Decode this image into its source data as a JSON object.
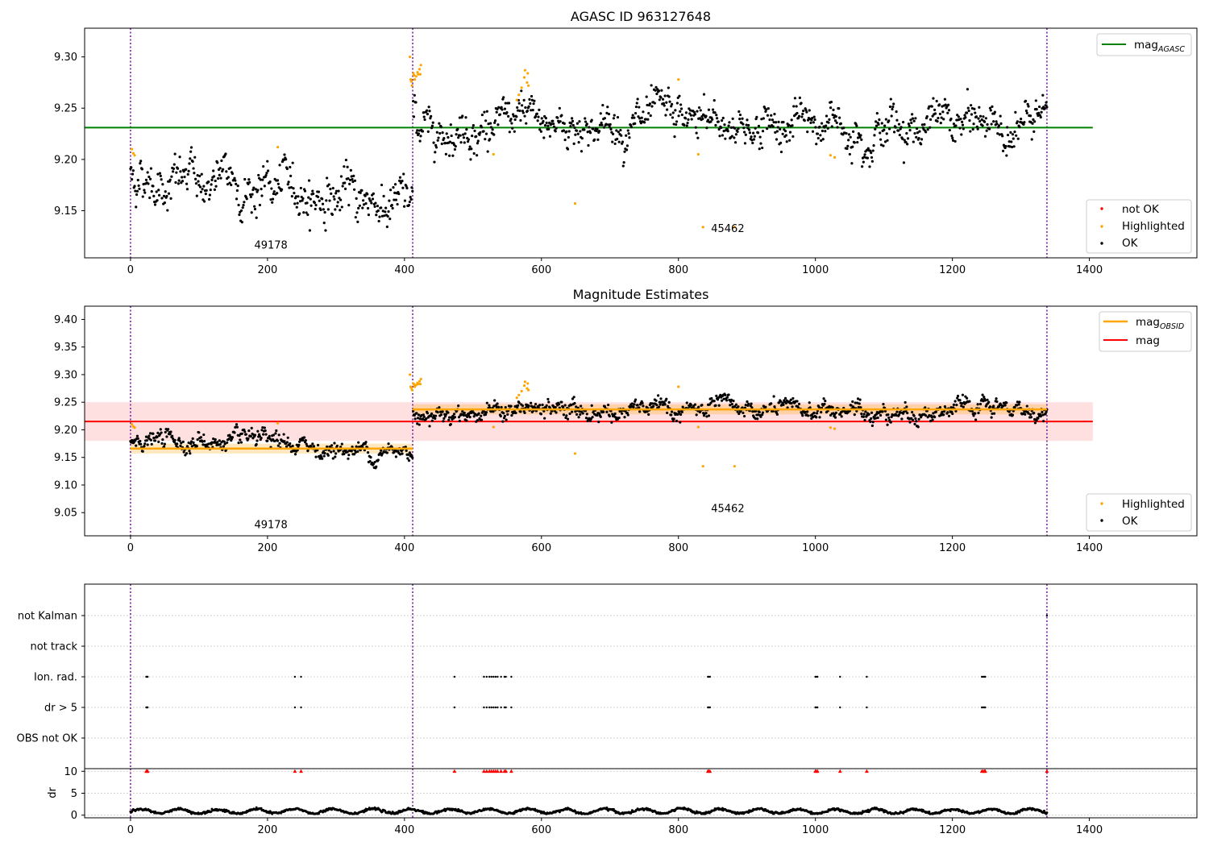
{
  "chart_data": [
    {
      "type": "scatter",
      "title": "AGASC ID 963127648",
      "xlabel": "",
      "ylabel": "",
      "xlim": [
        -67,
        1557
      ],
      "ylim": [
        9.104,
        9.328
      ],
      "xticks": [
        0,
        200,
        400,
        600,
        800,
        1000,
        1200,
        1400
      ],
      "yticks": [
        9.15,
        9.2,
        9.25,
        9.3
      ],
      "xtick_labels": [
        "0",
        "200",
        "400",
        "600",
        "800",
        "1000",
        "1200",
        "1400"
      ],
      "ytick_labels": [
        "9.15",
        "9.20",
        "9.25",
        "9.30"
      ],
      "obs_boundaries": [
        0,
        412,
        1338
      ],
      "obs_labels": [
        {
          "text": "49178",
          "x": 205,
          "y": 9.113
        },
        {
          "text": "45462",
          "x": 872,
          "y": 9.129
        }
      ],
      "lines": [
        {
          "name": "mag_AGASC",
          "color": "#008000",
          "x": [
            -67,
            1405
          ],
          "y": [
            9.231,
            9.231
          ]
        }
      ],
      "series": [
        {
          "name": "not OK",
          "color": "#ff0000",
          "points": []
        },
        {
          "name": "Highlighted",
          "color": "#ffa500",
          "points": [
            [
              2,
              9.21
            ],
            [
              4,
              9.206
            ],
            [
              6,
              9.204
            ],
            [
              215,
              9.212
            ],
            [
              408,
              9.3
            ],
            [
              409,
              9.278
            ],
            [
              410,
              9.276
            ],
            [
              411,
              9.272
            ],
            [
              413,
              9.284
            ],
            [
              414,
              9.282
            ],
            [
              415,
              9.278
            ],
            [
              417,
              9.281
            ],
            [
              419,
              9.285
            ],
            [
              420,
              9.283
            ],
            [
              422,
              9.288
            ],
            [
              423,
              9.283
            ],
            [
              424,
              9.292
            ],
            [
              530,
              9.205
            ],
            [
              564,
              9.258
            ],
            [
              567,
              9.263
            ],
            [
              571,
              9.27
            ],
            [
              575,
              9.28
            ],
            [
              576,
              9.287
            ],
            [
              579,
              9.275
            ],
            [
              580,
              9.284
            ],
            [
              581,
              9.272
            ],
            [
              649,
              9.157
            ],
            [
              800,
              9.278
            ],
            [
              829,
              9.205
            ],
            [
              836,
              9.134
            ],
            [
              882,
              9.134
            ],
            [
              1022,
              9.204
            ],
            [
              1028,
              9.202
            ]
          ]
        },
        {
          "name": "OK",
          "color": "#000000",
          "count": 1340,
          "x_range": [
            0,
            1338
          ],
          "segments": [
            {
              "x_from": 0,
              "x_to": 412,
              "level_start": 9.185,
              "level_end": 9.157,
              "spread": 0.014
            },
            {
              "x_from": 412,
              "x_to": 1338,
              "level": 9.234,
              "spread": 0.012
            }
          ]
        }
      ],
      "legend": {
        "position": "lower-right",
        "entries": [
          "not OK",
          "Highlighted",
          "OK"
        ]
      },
      "legend_lines": {
        "position": "upper-right",
        "entries": [
          "mag_AGASC"
        ]
      },
      "grid": false
    },
    {
      "type": "scatter",
      "title": "Magnitude Estimates",
      "xlabel": "",
      "ylabel": "",
      "xlim": [
        -67,
        1557
      ],
      "ylim": [
        9.008,
        9.424
      ],
      "xticks": [
        0,
        200,
        400,
        600,
        800,
        1000,
        1200,
        1400
      ],
      "yticks": [
        9.05,
        9.1,
        9.15,
        9.2,
        9.25,
        9.3,
        9.35,
        9.4
      ],
      "xtick_labels": [
        "0",
        "200",
        "400",
        "600",
        "800",
        "1000",
        "1200",
        "1400"
      ],
      "ytick_labels": [
        "9.05",
        "9.10",
        "9.15",
        "9.20",
        "9.25",
        "9.30",
        "9.35",
        "9.40"
      ],
      "obs_boundaries": [
        0,
        412,
        1338
      ],
      "obs_labels": [
        {
          "text": "49178",
          "x": 205,
          "y": 9.022
        },
        {
          "text": "45462",
          "x": 872,
          "y": 9.051
        }
      ],
      "bands": [
        {
          "color": "#ff9999",
          "opacity": 0.3,
          "x": [
            -67,
            1405
          ],
          "y": [
            9.18,
            9.25
          ]
        },
        {
          "color": "#ffa500",
          "opacity": 0.25,
          "x": [
            0,
            412
          ],
          "y": [
            9.157,
            9.175
          ]
        },
        {
          "color": "#ffa500",
          "opacity": 0.25,
          "x": [
            412,
            1338
          ],
          "y": [
            9.228,
            9.246
          ]
        }
      ],
      "lines": [
        {
          "name": "mag_OBSID",
          "color": "#ffa500",
          "segments": [
            {
              "x": [
                0,
                412
              ],
              "y": [
                9.166,
                9.166
              ]
            },
            {
              "x": [
                412,
                1338
              ],
              "y": [
                9.237,
                9.237
              ]
            }
          ]
        },
        {
          "name": "mag",
          "color": "#ff0000",
          "x": [
            -67,
            1405
          ],
          "y": [
            9.215,
            9.215
          ]
        }
      ],
      "series": [
        {
          "name": "Highlighted",
          "color": "#ffa500",
          "points": [
            [
              2,
              9.21
            ],
            [
              4,
              9.206
            ],
            [
              6,
              9.204
            ],
            [
              215,
              9.212
            ],
            [
              408,
              9.3
            ],
            [
              409,
              9.278
            ],
            [
              410,
              9.276
            ],
            [
              411,
              9.272
            ],
            [
              413,
              9.284
            ],
            [
              414,
              9.282
            ],
            [
              415,
              9.278
            ],
            [
              417,
              9.281
            ],
            [
              419,
              9.285
            ],
            [
              420,
              9.283
            ],
            [
              422,
              9.288
            ],
            [
              423,
              9.283
            ],
            [
              424,
              9.292
            ],
            [
              530,
              9.205
            ],
            [
              564,
              9.258
            ],
            [
              567,
              9.263
            ],
            [
              571,
              9.27
            ],
            [
              575,
              9.28
            ],
            [
              576,
              9.287
            ],
            [
              579,
              9.275
            ],
            [
              580,
              9.284
            ],
            [
              581,
              9.272
            ],
            [
              649,
              9.157
            ],
            [
              800,
              9.278
            ],
            [
              829,
              9.205
            ],
            [
              836,
              9.134
            ],
            [
              882,
              9.134
            ],
            [
              1022,
              9.204
            ],
            [
              1028,
              9.202
            ]
          ]
        },
        {
          "name": "OK",
          "color": "#000000",
          "count": 1340,
          "x_range": [
            0,
            1338
          ],
          "segments": [
            {
              "x_from": 0,
              "x_to": 412,
              "level_start": 9.185,
              "level_end": 9.157,
              "spread": 0.01
            },
            {
              "x_from": 412,
              "x_to": 1338,
              "level": 9.234,
              "spread": 0.01
            }
          ]
        }
      ],
      "legend": {
        "position": "lower-right",
        "entries": [
          "Highlighted",
          "OK"
        ]
      },
      "legend_lines": {
        "position": "upper-right",
        "entries": [
          "mag_OBSID",
          "mag"
        ]
      },
      "grid": false
    },
    {
      "type": "scatter",
      "title": "",
      "xlabel": "",
      "ylabel": "",
      "xlim": [
        -67,
        1557
      ],
      "categories": [
        "not Kalman",
        "not track",
        "Ion. rad.",
        "dr > 5",
        "OBS not OK"
      ],
      "obs_boundaries": [
        0,
        412,
        1338
      ],
      "flags": [
        {
          "category": "not Kalman",
          "x": [
            1338
          ]
        },
        {
          "category": "not track",
          "x": []
        },
        {
          "category": "Ion. rad.",
          "x": [
            23,
            24,
            25,
            240,
            249,
            473,
            516,
            520,
            524,
            527,
            530,
            533,
            536,
            541,
            546,
            548,
            556,
            843,
            844,
            846,
            1000,
            1001,
            1003,
            1036,
            1075,
            1243,
            1245,
            1247,
            1248
          ]
        },
        {
          "category": "dr > 5",
          "x": [
            23,
            24,
            25,
            240,
            249,
            473,
            516,
            520,
            524,
            527,
            530,
            533,
            536,
            541,
            546,
            548,
            556,
            843,
            844,
            846,
            1000,
            1001,
            1003,
            1036,
            1075,
            1243,
            1245,
            1247,
            1248
          ]
        },
        {
          "category": "OBS not OK",
          "x": []
        }
      ],
      "grid": true
    },
    {
      "type": "scatter",
      "title": "",
      "xlabel": "",
      "ylabel": "dr",
      "xlim": [
        -67,
        1557
      ],
      "ylim": [
        -0.6,
        10.6
      ],
      "xticks": [
        0,
        200,
        400,
        600,
        800,
        1000,
        1200,
        1400
      ],
      "yticks": [
        0,
        5,
        10
      ],
      "xtick_labels": [
        "0",
        "200",
        "400",
        "600",
        "800",
        "1000",
        "1200",
        "1400"
      ],
      "ytick_labels": [
        "0",
        "5",
        "10"
      ],
      "obs_boundaries": [
        0,
        412,
        1338
      ],
      "series": [
        {
          "name": "dr",
          "color": "#000000",
          "count": 1340,
          "x_range": [
            0,
            1338
          ],
          "typical": [
            0.3,
            2.0
          ]
        },
        {
          "name": "dr clipped",
          "color": "#ff0000",
          "marker": "triangle-up",
          "y": 10,
          "x": [
            23,
            24,
            25,
            240,
            249,
            473,
            516,
            520,
            524,
            527,
            530,
            533,
            536,
            541,
            546,
            548,
            556,
            843,
            844,
            846,
            1000,
            1001,
            1003,
            1036,
            1075,
            1243,
            1245,
            1247,
            1248,
            1338
          ]
        }
      ],
      "grid": true
    }
  ],
  "legend_labels": {
    "mag_agasc_main": "mag",
    "mag_agasc_sub": "AGASC",
    "mag_obsid_main": "mag",
    "mag_obsid_sub": "OBSID",
    "mag": "mag",
    "not_ok": "not OK",
    "highlighted": "Highlighted",
    "ok": "OK"
  }
}
